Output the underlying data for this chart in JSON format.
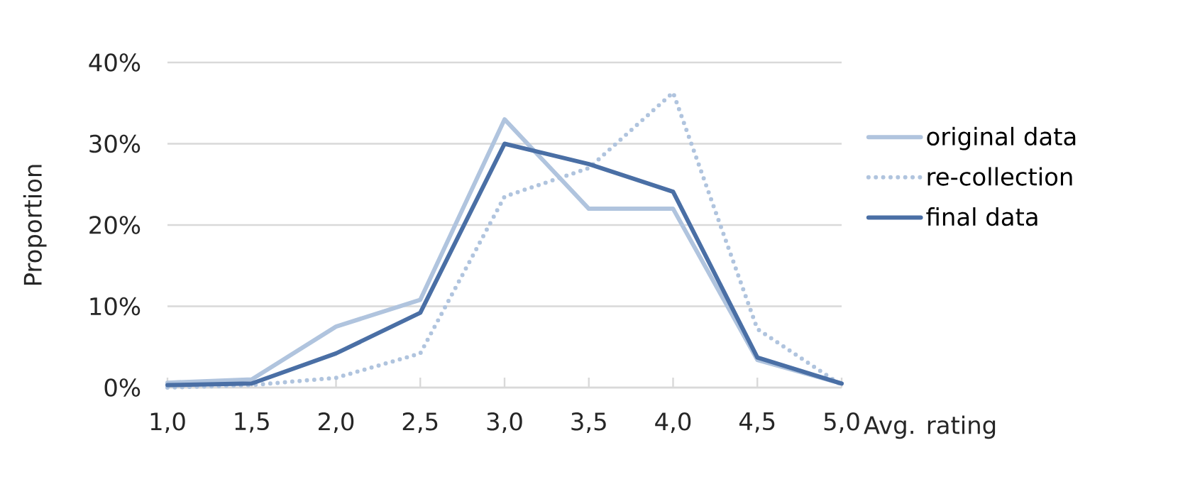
{
  "chart_data": {
    "type": "line",
    "xlabel": "Avg. rating",
    "ylabel": "Proportion",
    "x": [
      1,
      1.5,
      2,
      2.5,
      3,
      3.5,
      4,
      4.5,
      5
    ],
    "series": [
      {
        "name": "original data",
        "color": "#b0c4de",
        "line_style": "solid",
        "values": [
          0.6,
          1,
          7.5,
          10.8,
          33,
          22,
          22,
          3.4,
          0.5
        ]
      },
      {
        "name": "re-collection",
        "color": "#b0c4de",
        "line_style": "dotted",
        "values": [
          0,
          0.3,
          1.2,
          4.2,
          23.5,
          27,
          36.3,
          7.2,
          0.3
        ]
      },
      {
        "name": "final data",
        "color": "#4a6fa5",
        "line_style": "solid",
        "values": [
          0.3,
          0.5,
          4.2,
          9.2,
          30,
          27.5,
          24.1,
          3.7,
          0.5
        ]
      }
    ],
    "xlim": [
      1,
      5
    ],
    "ylim": [
      0,
      40
    ],
    "xticks": [
      {
        "value": 1,
        "label": "1,0"
      },
      {
        "value": 1.5,
        "label": "1,5"
      },
      {
        "value": 2,
        "label": "2,0"
      },
      {
        "value": 2.5,
        "label": "2,5"
      },
      {
        "value": 3,
        "label": "3,0"
      },
      {
        "value": 3.5,
        "label": "3,5"
      },
      {
        "value": 4,
        "label": "4,0"
      },
      {
        "value": 4.5,
        "label": "4,5"
      },
      {
        "value": 5,
        "label": "5,0"
      }
    ],
    "yticks": [
      {
        "value": 0,
        "label": "0%"
      },
      {
        "value": 10,
        "label": "10%"
      },
      {
        "value": 20,
        "label": "20%"
      },
      {
        "value": 30,
        "label": "30%"
      },
      {
        "value": 40,
        "label": "40%"
      }
    ],
    "grid": "y",
    "legend": "right",
    "marker": "none"
  }
}
